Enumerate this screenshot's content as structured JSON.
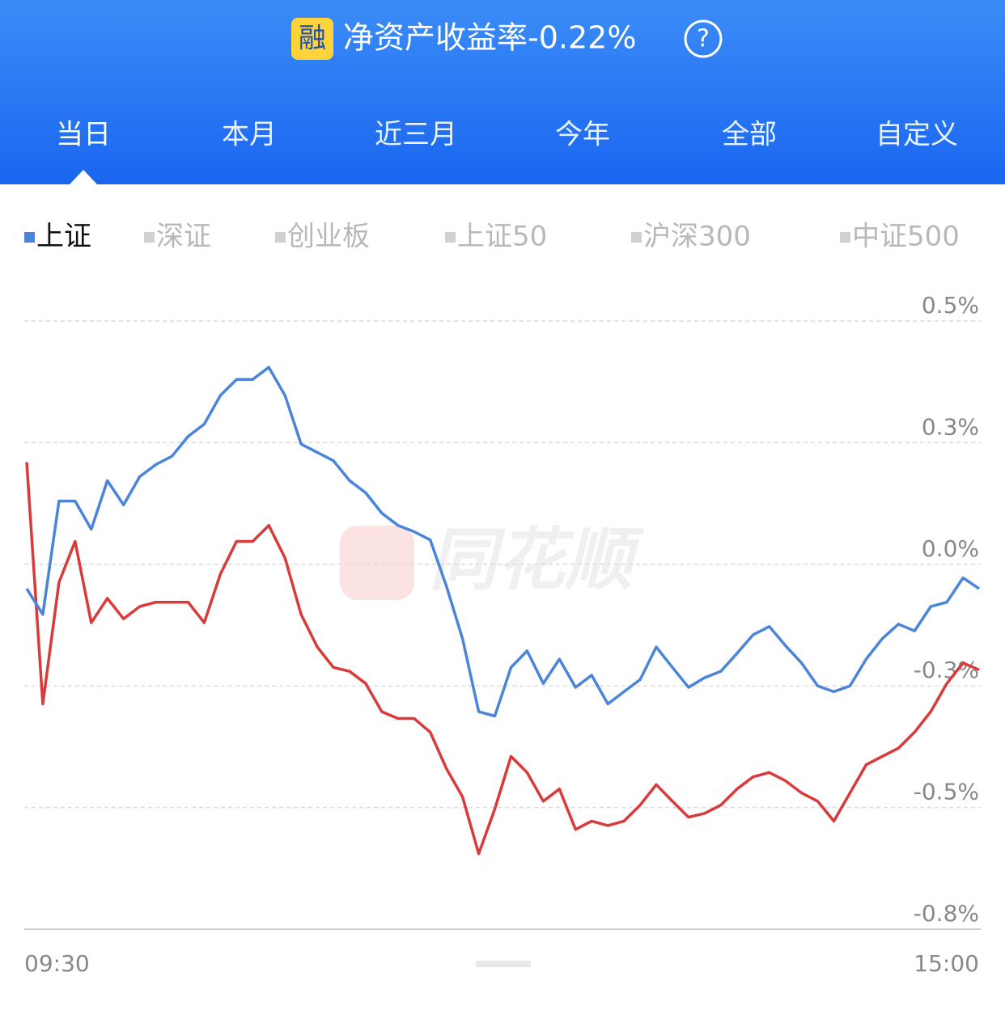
{
  "header": {
    "badge": "融",
    "title": "净资产收益率-0.22%",
    "help": "?"
  },
  "period_tabs": [
    "当日",
    "本月",
    "近三月",
    "今年",
    "全部",
    "自定义"
  ],
  "chart_data": {
    "type": "line",
    "index_tabs": [
      "深证",
      "创业板",
      "上证50",
      "沪深300",
      "中证500"
    ],
    "watermark": "同花顺",
    "x_labels": [
      "09:30",
      "15:00"
    ],
    "ylim": [
      -0.75,
      0.5
    ],
    "yticks": [
      {
        "value": 0.5,
        "label": "0.5%"
      },
      {
        "value": 0.25,
        "label": "0.3%"
      },
      {
        "value": 0,
        "label": "0.0%"
      },
      {
        "value": -0.25,
        "label": "-0.3%"
      },
      {
        "value": -0.5,
        "label": "-0.5%"
      },
      {
        "value": -0.75,
        "label": "-0.8%"
      }
    ],
    "grid": true,
    "series": [
      {
        "name": "上证",
        "color": "#4a85d9",
        "values": [
          -0.05,
          -0.103,
          0.13,
          0.13,
          0.072,
          0.172,
          0.122,
          0.18,
          0.205,
          0.222,
          0.263,
          0.288,
          0.347,
          0.38,
          0.38,
          0.405,
          0.347,
          0.247,
          0.23,
          0.213,
          0.172,
          0.147,
          0.105,
          0.08,
          0.067,
          0.05,
          -0.045,
          -0.153,
          -0.303,
          -0.312,
          -0.212,
          -0.178,
          -0.245,
          -0.195,
          -0.253,
          -0.228,
          -0.287,
          -0.262,
          -0.237,
          -0.17,
          -0.212,
          -0.253,
          -0.233,
          -0.22,
          -0.183,
          -0.145,
          -0.128,
          -0.167,
          -0.203,
          -0.25,
          -0.262,
          -0.25,
          -0.195,
          -0.153,
          -0.123,
          -0.137,
          -0.087,
          -0.078,
          -0.028,
          -0.05
        ]
      },
      {
        "color": "#d93a3a",
        "values": [
          0.21,
          -0.287,
          -0.037,
          0.047,
          -0.12,
          -0.07,
          -0.112,
          -0.087,
          -0.078,
          -0.078,
          -0.078,
          -0.12,
          -0.02,
          0.047,
          0.047,
          0.08,
          0.013,
          -0.103,
          -0.17,
          -0.212,
          -0.22,
          -0.245,
          -0.303,
          -0.317,
          -0.317,
          -0.345,
          -0.42,
          -0.478,
          -0.595,
          -0.503,
          -0.395,
          -0.428,
          -0.487,
          -0.462,
          -0.545,
          -0.528,
          -0.537,
          -0.528,
          -0.495,
          -0.453,
          -0.487,
          -0.52,
          -0.512,
          -0.495,
          -0.462,
          -0.437,
          -0.428,
          -0.445,
          -0.47,
          -0.487,
          -0.528,
          -0.47,
          -0.412,
          -0.395,
          -0.378,
          -0.345,
          -0.303,
          -0.245,
          -0.203,
          -0.217
        ]
      }
    ]
  }
}
